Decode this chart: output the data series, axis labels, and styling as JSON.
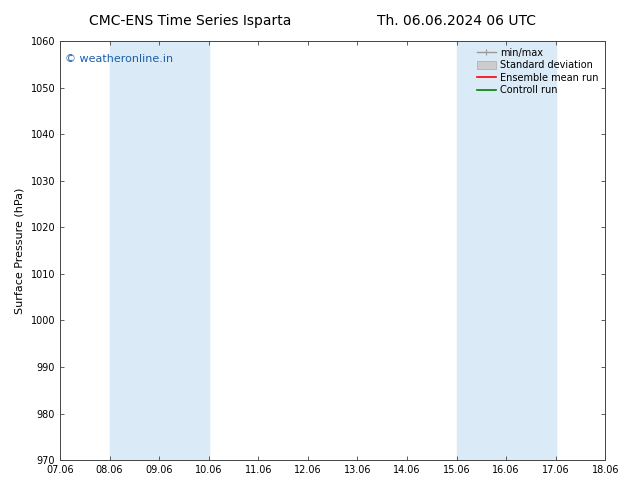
{
  "title_left": "CMC-ENS Time Series Isparta",
  "title_right": "Th. 06.06.2024 06 UTC",
  "ylabel": "Surface Pressure (hPa)",
  "ylim": [
    970,
    1060
  ],
  "yticks": [
    970,
    980,
    990,
    1000,
    1010,
    1020,
    1030,
    1040,
    1050,
    1060
  ],
  "xlim": [
    0,
    11
  ],
  "xtick_labels": [
    "07.06",
    "08.06",
    "09.06",
    "10.06",
    "11.06",
    "12.06",
    "13.06",
    "14.06",
    "15.06",
    "16.06",
    "17.06",
    "18.06"
  ],
  "xtick_positions": [
    0,
    1,
    2,
    3,
    4,
    5,
    6,
    7,
    8,
    9,
    10,
    11
  ],
  "shaded_regions": [
    {
      "xmin": 1,
      "xmax": 3,
      "color": "#daeaf7"
    },
    {
      "xmin": 8,
      "xmax": 10,
      "color": "#daeaf7"
    }
  ],
  "watermark": "© weatheronline.in",
  "watermark_color": "#1a5fa8",
  "legend_entries": [
    {
      "label": "min/max",
      "color": "#999999",
      "lw": 1.0
    },
    {
      "label": "Standard deviation",
      "color": "#bbbbbb",
      "lw": 5
    },
    {
      "label": "Ensemble mean run",
      "color": "red",
      "lw": 1.2
    },
    {
      "label": "Controll run",
      "color": "green",
      "lw": 1.2
    }
  ],
  "bg_color": "#ffffff",
  "plot_bg_color": "#ffffff",
  "spine_color": "#444444",
  "font_color": "#000000",
  "title_fontsize": 10,
  "tick_fontsize": 7,
  "ylabel_fontsize": 8,
  "watermark_fontsize": 8,
  "legend_fontsize": 7
}
